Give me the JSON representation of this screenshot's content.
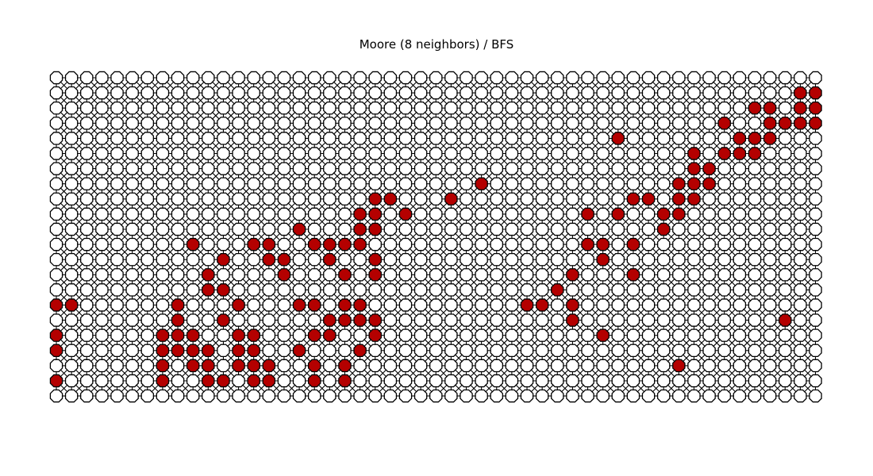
{
  "figure": {
    "title": "Moore (8 neighbors) / BFS"
  },
  "grid": {
    "columns": 51,
    "rows": 22,
    "neighborhood": "Moore (8 neighbors)",
    "algorithm": "BFS",
    "node_shape": "octagon",
    "colors": {
      "unvisited_fill": "#ffffff",
      "visited_fill": "#b40000",
      "node_edge": "#000000",
      "link": "#000000"
    },
    "visited_nodes": [
      [
        1,
        49
      ],
      [
        1,
        50
      ],
      [
        2,
        46
      ],
      [
        2,
        47
      ],
      [
        2,
        49
      ],
      [
        2,
        50
      ],
      [
        3,
        44
      ],
      [
        3,
        47
      ],
      [
        3,
        48
      ],
      [
        3,
        49
      ],
      [
        3,
        50
      ],
      [
        4,
        37
      ],
      [
        4,
        45
      ],
      [
        4,
        46
      ],
      [
        4,
        47
      ],
      [
        5,
        42
      ],
      [
        5,
        44
      ],
      [
        5,
        45
      ],
      [
        5,
        46
      ],
      [
        6,
        42
      ],
      [
        6,
        43
      ],
      [
        7,
        28
      ],
      [
        7,
        41
      ],
      [
        7,
        42
      ],
      [
        7,
        43
      ],
      [
        8,
        21
      ],
      [
        8,
        22
      ],
      [
        8,
        26
      ],
      [
        8,
        38
      ],
      [
        8,
        39
      ],
      [
        8,
        41
      ],
      [
        8,
        42
      ],
      [
        9,
        20
      ],
      [
        9,
        21
      ],
      [
        9,
        23
      ],
      [
        9,
        35
      ],
      [
        9,
        37
      ],
      [
        9,
        40
      ],
      [
        9,
        41
      ],
      [
        10,
        16
      ],
      [
        10,
        20
      ],
      [
        10,
        21
      ],
      [
        10,
        40
      ],
      [
        11,
        9
      ],
      [
        11,
        13
      ],
      [
        11,
        14
      ],
      [
        11,
        17
      ],
      [
        11,
        18
      ],
      [
        11,
        19
      ],
      [
        11,
        20
      ],
      [
        11,
        35
      ],
      [
        11,
        36
      ],
      [
        11,
        38
      ],
      [
        12,
        11
      ],
      [
        12,
        14
      ],
      [
        12,
        15
      ],
      [
        12,
        18
      ],
      [
        12,
        21
      ],
      [
        12,
        36
      ],
      [
        13,
        10
      ],
      [
        13,
        15
      ],
      [
        13,
        19
      ],
      [
        13,
        21
      ],
      [
        13,
        34
      ],
      [
        13,
        38
      ],
      [
        14,
        10
      ],
      [
        14,
        11
      ],
      [
        14,
        33
      ],
      [
        15,
        0
      ],
      [
        15,
        1
      ],
      [
        15,
        8
      ],
      [
        15,
        12
      ],
      [
        15,
        16
      ],
      [
        15,
        17
      ],
      [
        15,
        19
      ],
      [
        15,
        20
      ],
      [
        15,
        31
      ],
      [
        15,
        32
      ],
      [
        15,
        34
      ],
      [
        16,
        8
      ],
      [
        16,
        11
      ],
      [
        16,
        18
      ],
      [
        16,
        19
      ],
      [
        16,
        20
      ],
      [
        16,
        21
      ],
      [
        16,
        34
      ],
      [
        16,
        48
      ],
      [
        17,
        0
      ],
      [
        17,
        7
      ],
      [
        17,
        8
      ],
      [
        17,
        9
      ],
      [
        17,
        12
      ],
      [
        17,
        13
      ],
      [
        17,
        17
      ],
      [
        17,
        18
      ],
      [
        17,
        21
      ],
      [
        17,
        36
      ],
      [
        18,
        0
      ],
      [
        18,
        7
      ],
      [
        18,
        8
      ],
      [
        18,
        9
      ],
      [
        18,
        10
      ],
      [
        18,
        12
      ],
      [
        18,
        13
      ],
      [
        18,
        16
      ],
      [
        18,
        20
      ],
      [
        19,
        7
      ],
      [
        19,
        9
      ],
      [
        19,
        10
      ],
      [
        19,
        12
      ],
      [
        19,
        13
      ],
      [
        19,
        14
      ],
      [
        19,
        17
      ],
      [
        19,
        19
      ],
      [
        19,
        41
      ],
      [
        20,
        0
      ],
      [
        20,
        7
      ],
      [
        20,
        10
      ],
      [
        20,
        11
      ],
      [
        20,
        13
      ],
      [
        20,
        14
      ],
      [
        20,
        17
      ],
      [
        20,
        19
      ]
    ]
  }
}
